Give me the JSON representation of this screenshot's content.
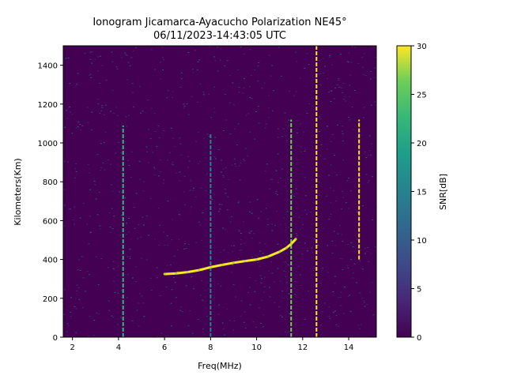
{
  "chart_data": {
    "type": "heatmap",
    "title_line1": "Ionogram Jicamarca-Ayacucho Polarization NE45°",
    "title_line2": "06/11/2023-14:43:05 UTC",
    "xlabel": "Freq(MHz)",
    "ylabel": "Kilometers(Km)",
    "colorbar_label": "SNR[dB]",
    "xlim": [
      1.6,
      15.2
    ],
    "ylim": [
      0,
      1500
    ],
    "clim": [
      0,
      30
    ],
    "colormap": "viridis",
    "xticks": [
      2,
      4,
      6,
      8,
      10,
      12,
      14
    ],
    "yticks": [
      0,
      200,
      400,
      600,
      800,
      1000,
      1200,
      1400
    ],
    "cticks": [
      0,
      5,
      10,
      15,
      20,
      25,
      30
    ],
    "trace": {
      "x": [
        6.0,
        6.5,
        7.0,
        7.5,
        8.0,
        8.5,
        9.0,
        9.5,
        10.0,
        10.5,
        11.0,
        11.3,
        11.5,
        11.7
      ],
      "y": [
        325,
        328,
        335,
        345,
        360,
        372,
        383,
        392,
        400,
        415,
        440,
        460,
        480,
        505
      ]
    },
    "vertical_lines": [
      {
        "x": 4.2,
        "y_from": 0,
        "y_to": 1090,
        "snr": 24
      },
      {
        "x": 8.0,
        "y_from": 0,
        "y_to": 1050,
        "snr": 16
      },
      {
        "x": 11.5,
        "y_from": 0,
        "y_to": 1120,
        "snr": 26
      },
      {
        "x": 12.6,
        "y_from": 0,
        "y_to": 1500,
        "snr": 30
      },
      {
        "x": 14.45,
        "y_from": 400,
        "y_to": 1120,
        "snr": 30
      }
    ],
    "colors": {
      "background": "#440154",
      "grid_dark": "#3b2a73",
      "frame": "#000000"
    }
  }
}
